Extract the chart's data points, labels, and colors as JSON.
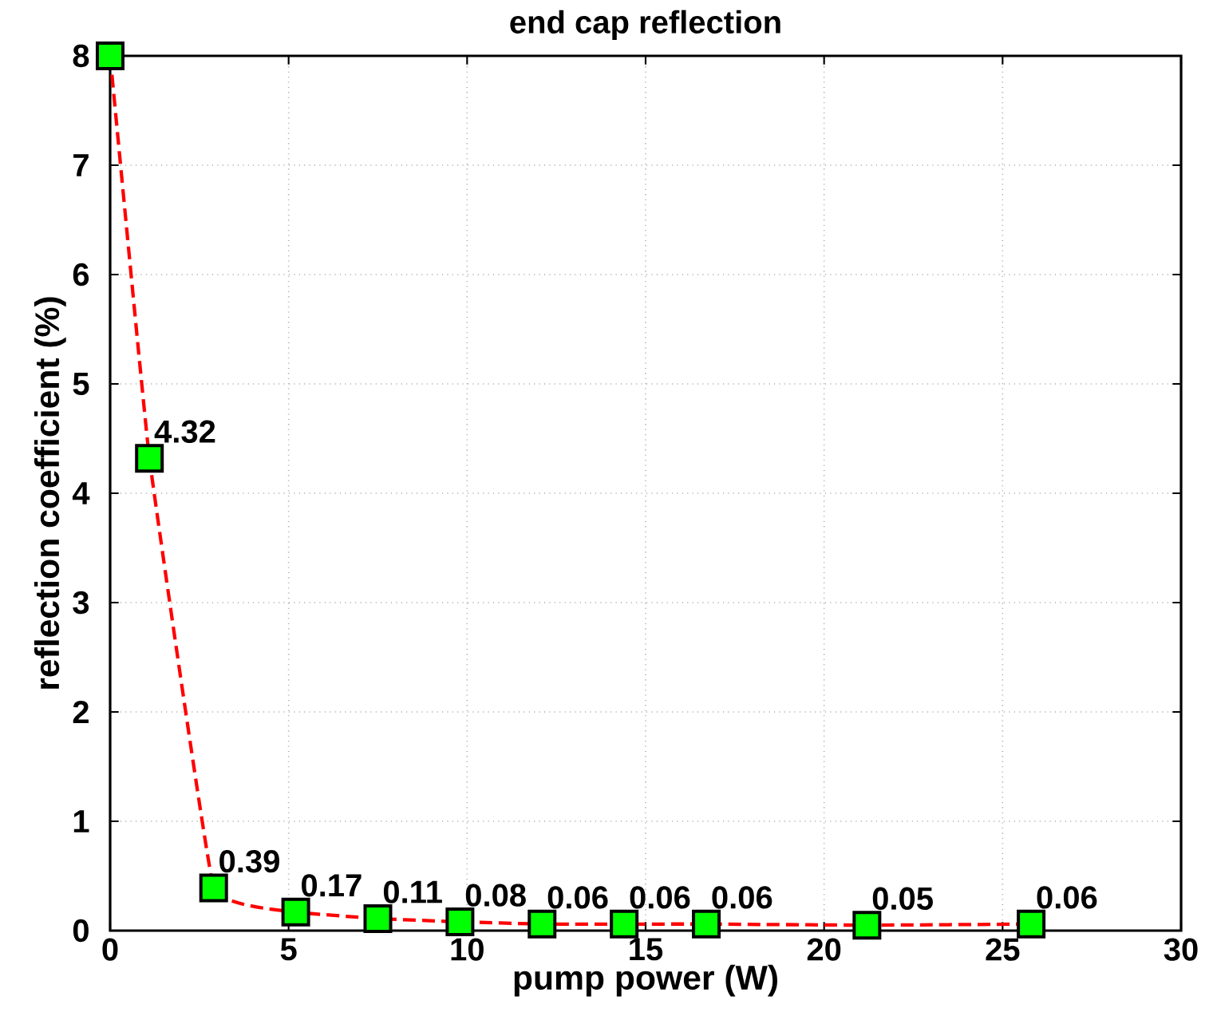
{
  "chart_data": {
    "type": "line",
    "title": "end cap reflection",
    "xlabel": "pump power (W)",
    "ylabel": "reflection coefficient (%)",
    "x": [
      0,
      1.1,
      2.9,
      5.2,
      7.5,
      9.8,
      12.1,
      14.4,
      16.7,
      21.2,
      25.8
    ],
    "series": [
      {
        "color": "#ff0000",
        "values": [
          8.0,
          4.32,
          0.39,
          0.17,
          0.11,
          0.08,
          0.06,
          0.06,
          0.06,
          0.05,
          0.06
        ],
        "value_labels": [
          null,
          "4.32",
          "0.39",
          "0.17",
          "0.11",
          "0.08",
          "0.06",
          "0.06",
          "0.06",
          "0.05",
          "0.06"
        ],
        "colors": [
          "#00ff00",
          "#00ff00",
          "#00ff00",
          "#00ff00",
          "#00ff00",
          "#00ff00",
          "#00ff00",
          "#00ff00",
          "#00ff00",
          "#00ff00",
          "#00ff00"
        ]
      }
    ],
    "marker": "square",
    "line_style": "dashed",
    "grid": true,
    "xlim": [
      0,
      30
    ],
    "ylim": [
      0,
      8
    ],
    "xticks": [
      0,
      5,
      10,
      15,
      20,
      25,
      30
    ],
    "yticks": [
      0,
      1,
      2,
      3,
      4,
      5,
      6,
      7,
      8
    ]
  }
}
